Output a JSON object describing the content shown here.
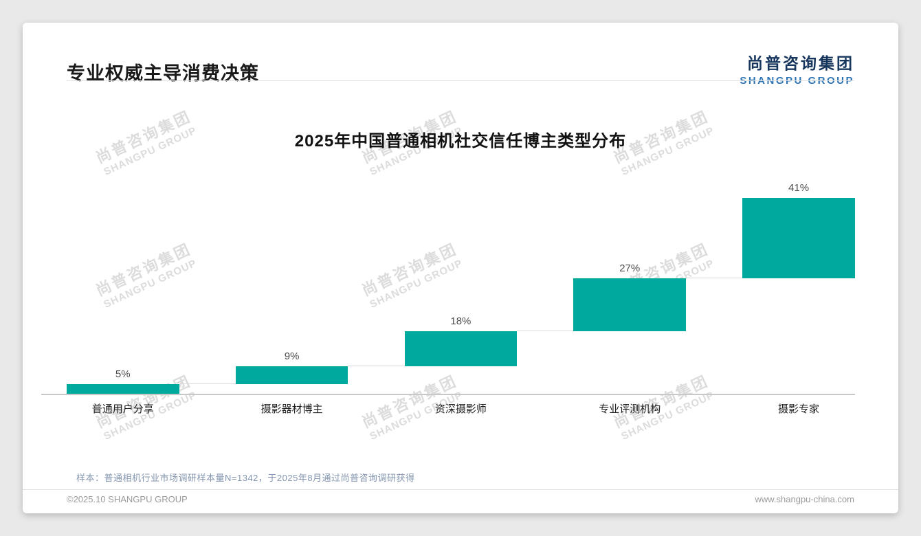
{
  "page": {
    "header_title": "专业权威主导消费决策",
    "logo_cn": "尚普咨询集团",
    "logo_en": "SHANGPU GROUP",
    "footnote": "样本：普通相机行业市场调研样本量N=1342，于2025年8月通过尚普咨询调研获得",
    "footer_left": "©2025.10 SHANGPU GROUP",
    "footer_right": "www.shangpu-china.com"
  },
  "watermark": {
    "text_cn": "尚普咨询集团",
    "text_en": "SHANGPU GROUP"
  },
  "chart_data": {
    "type": "bar",
    "subtype": "waterfall-staircase",
    "title": "2025年中国普通相机社交信任博主类型分布",
    "categories": [
      "普通用户分享",
      "摄影器材博主",
      "资深摄影师",
      "专业评测机构",
      "摄影专家"
    ],
    "values": [
      5,
      9,
      18,
      27,
      41
    ],
    "labels": [
      "5%",
      "9%",
      "18%",
      "27%",
      "41%"
    ],
    "cumulative_starts": [
      0,
      5,
      14,
      32,
      59
    ],
    "bar_color": "#00A99D",
    "connector_color": "#d9d9d9",
    "ylim": [
      0,
      100
    ],
    "xlabel": "",
    "ylabel": "",
    "grid": false,
    "legend": false
  }
}
